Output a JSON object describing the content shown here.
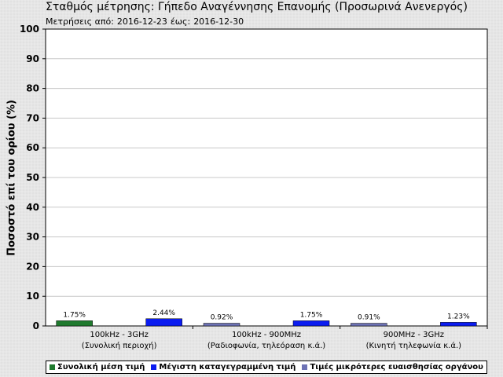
{
  "header": {
    "title": "Σταθμός μέτρησης: Γήπεδο Αναγέννησης Επανομής (Προσωρινά Ανενεργός)",
    "period_label": "Μετρήσεις από:",
    "from_date": "2016-12-23",
    "to_label": "έως:",
    "to_date": "2016-12-30"
  },
  "legend": {
    "items": [
      {
        "label": "Συνολική μέση τιμή",
        "color": "#1f7a2e"
      },
      {
        "label": "Μέγιστη καταγεγραμμένη τιμή",
        "color": "#0b1cf0"
      },
      {
        "label": "Τιμές μικρότερες ευαισθησίας οργάνου",
        "color": "#6d72b5"
      }
    ]
  },
  "chart_data": {
    "type": "bar",
    "ylabel": "Ποσοστό επί του ορίου (%)",
    "ylim": [
      0,
      100
    ],
    "yticks": [
      0,
      10,
      20,
      30,
      40,
      50,
      60,
      70,
      80,
      90,
      100
    ],
    "grid": true,
    "legend_position": "bottom",
    "categories": [
      {
        "line1": "100kHz - 3GHz",
        "line2": "(Συνολική περιοχή)"
      },
      {
        "line1": "100kHz - 900MHz",
        "line2": "(Ραδιοφωνία, τηλεόραση κ.ά.)"
      },
      {
        "line1": "900MHz - 3GHz",
        "line2": "(Κινητή τηλεφωνία κ.ά.)"
      }
    ],
    "series": [
      {
        "name": "Συνολική μέση τιμή",
        "values": [
          1.75,
          null,
          null
        ],
        "labels": [
          "1.75%",
          "",
          ""
        ]
      },
      {
        "name": "Τιμές μικρότερες ευαισθησίας οργάνου",
        "values": [
          null,
          0.92,
          0.91
        ],
        "labels": [
          "",
          "0.92%",
          "0.91%"
        ]
      },
      {
        "name": "Μέγιστη καταγεγραμμένη τιμή",
        "values": [
          2.44,
          1.75,
          1.23
        ],
        "labels": [
          "2.44%",
          "1.75%",
          "1.23%"
        ]
      }
    ]
  }
}
